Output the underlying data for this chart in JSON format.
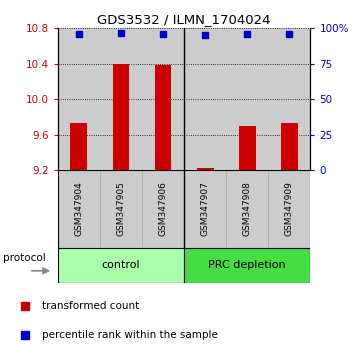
{
  "title": "GDS3532 / ILMN_1704024",
  "samples": [
    "GSM347904",
    "GSM347905",
    "GSM347906",
    "GSM347907",
    "GSM347908",
    "GSM347909"
  ],
  "red_values": [
    9.73,
    10.4,
    10.39,
    9.22,
    9.7,
    9.73
  ],
  "blue_values": [
    96,
    97,
    96,
    95,
    96,
    96
  ],
  "ylim_left": [
    9.2,
    10.8
  ],
  "ylim_right": [
    0,
    100
  ],
  "yticks_left": [
    9.2,
    9.6,
    10.0,
    10.4,
    10.8
  ],
  "yticks_right": [
    0,
    25,
    50,
    75,
    100
  ],
  "ytick_labels_right": [
    "0",
    "25",
    "50",
    "75",
    "100%"
  ],
  "baseline": 9.2,
  "bar_color": "#cc0000",
  "dot_color": "#0000cc",
  "groups": [
    {
      "label": "control",
      "indices": [
        0,
        1,
        2
      ],
      "color": "#aaffaa"
    },
    {
      "label": "PRC depletion",
      "indices": [
        3,
        4,
        5
      ],
      "color": "#44dd44"
    }
  ],
  "group_bar_bg": "#cccccc",
  "protocol_label": "protocol",
  "legend_red": "transformed count",
  "legend_blue": "percentile rank within the sample",
  "tick_color_left": "#cc0000",
  "tick_color_right": "#0000cc",
  "figsize": [
    3.61,
    3.54
  ],
  "dpi": 100
}
